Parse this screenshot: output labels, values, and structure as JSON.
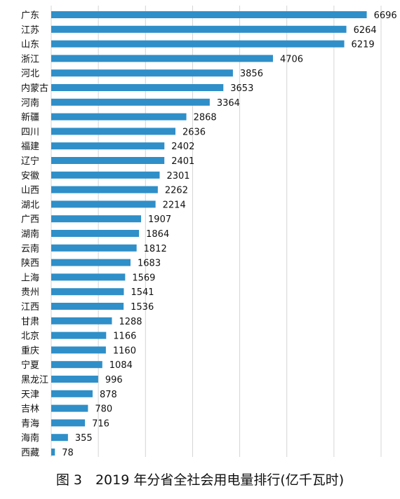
{
  "chart_data": {
    "type": "bar",
    "orientation": "horizontal",
    "caption": "图 3　2019 年分省全社会用电量排行(亿千瓦时)",
    "categories": [
      "广东",
      "江苏",
      "山东",
      "浙江",
      "河北",
      "内蒙古",
      "河南",
      "新疆",
      "四川",
      "福建",
      "辽宁",
      "安徽",
      "山西",
      "湖北",
      "广西",
      "湖南",
      "云南",
      "陕西",
      "上海",
      "贵州",
      "江西",
      "甘肃",
      "北京",
      "重庆",
      "宁夏",
      "黑龙江",
      "天津",
      "吉林",
      "青海",
      "海南",
      "西藏"
    ],
    "values": [
      6696,
      6264,
      6219,
      4706,
      3856,
      3653,
      3364,
      2868,
      2636,
      2402,
      2401,
      2301,
      2262,
      2214,
      1907,
      1864,
      1812,
      1683,
      1569,
      1541,
      1536,
      1288,
      1166,
      1160,
      1084,
      996,
      878,
      780,
      716,
      355,
      78
    ],
    "xlim": [
      0,
      7000
    ],
    "grid": true,
    "bar_color": "#2f8fc8"
  }
}
